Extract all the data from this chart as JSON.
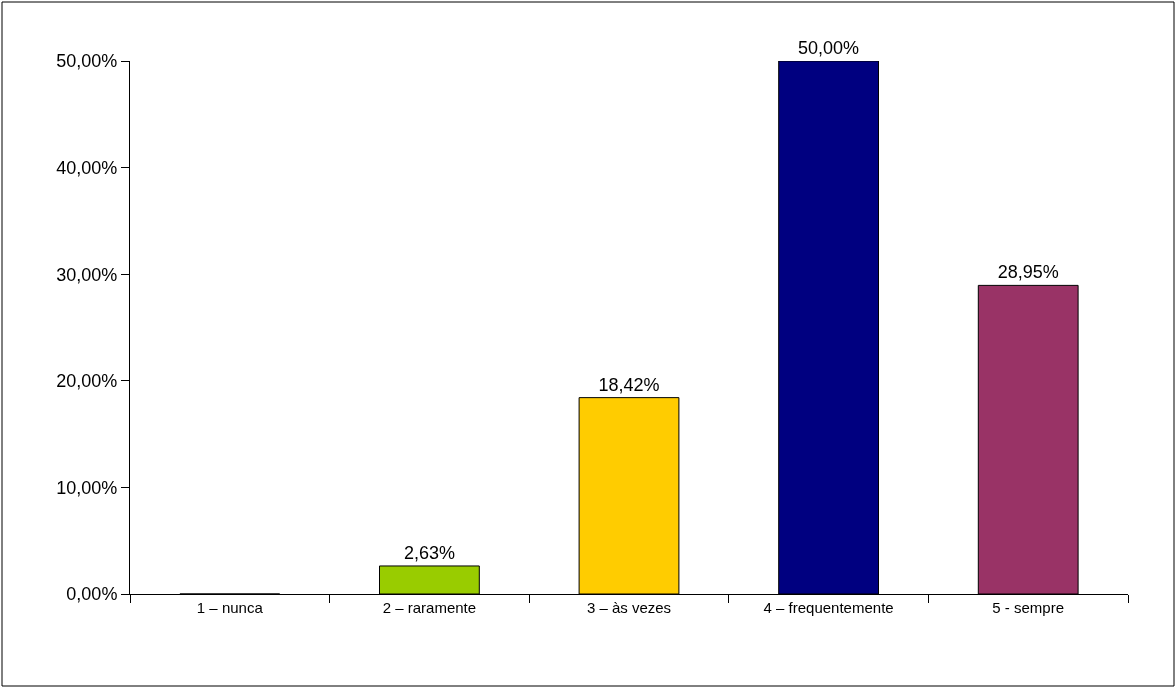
{
  "chart_data": {
    "type": "bar",
    "categories": [
      "1 – nunca",
      "2 – raramente",
      "3 – às vezes",
      "4 – frequentemente",
      "5 - sempre"
    ],
    "values": [
      0,
      2.63,
      18.42,
      50.0,
      28.95
    ],
    "colors": [
      "#99cc00",
      "#99cc00",
      "#ffcc00",
      "#000080",
      "#993366"
    ],
    "value_labels": [
      null,
      "2,63%",
      "18,42%",
      "50,00%",
      "28,95%"
    ],
    "ylim": [
      0,
      50
    ],
    "yticks": [
      {
        "value": 0,
        "label": "0,00%"
      },
      {
        "value": 10,
        "label": "10,00%"
      },
      {
        "value": 20,
        "label": "20,00%"
      },
      {
        "value": 30,
        "label": "30,00%"
      },
      {
        "value": 40,
        "label": "40,00%"
      },
      {
        "value": 50,
        "label": "50,00%"
      }
    ],
    "grid": false,
    "legend": false
  }
}
